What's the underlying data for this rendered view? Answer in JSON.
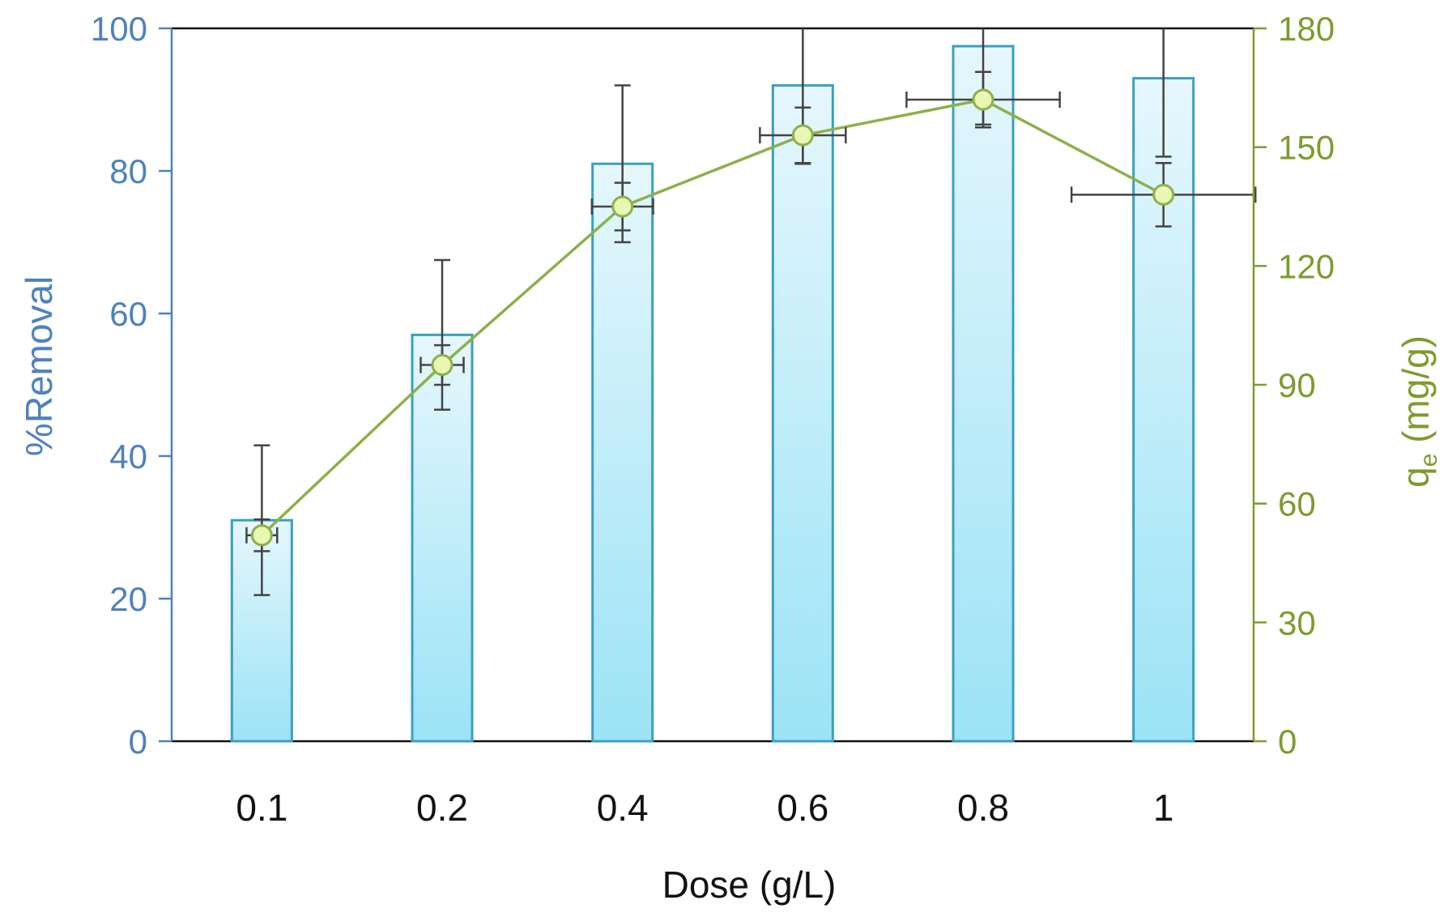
{
  "chart_data": {
    "type": "bar",
    "categories": [
      "0.1",
      "0.2",
      "0.4",
      "0.6",
      "0.8",
      "1"
    ],
    "xlabel": "Dose (g/L)",
    "ylabel": "%Removal",
    "y2label_main": "q",
    "y2label_sub": "e",
    "y2label_rest": " (mg/g)",
    "ylim": [
      0,
      100
    ],
    "y2lim": [
      0,
      180
    ],
    "yticks": [
      0,
      20,
      40,
      60,
      80,
      100
    ],
    "y2ticks": [
      0,
      30,
      60,
      90,
      120,
      150,
      180
    ],
    "grid": false,
    "series": [
      {
        "kind": "bar",
        "axis": "left",
        "values": [
          31,
          57,
          81,
          92,
          97.5,
          93
        ],
        "error": [
          10.5,
          10.5,
          11,
          11,
          11,
          11
        ],
        "color": "#4bacc6"
      },
      {
        "kind": "line",
        "axis": "right",
        "values": [
          52,
          95,
          135,
          153,
          162,
          138
        ],
        "error": [
          4,
          5,
          6,
          7,
          7,
          8
        ],
        "x_error": [
          0.025,
          0.035,
          0.05,
          0.07,
          0.125,
          0.15
        ],
        "color": "#8db04a"
      }
    ],
    "colors": {
      "left_axis": "#4f81bd",
      "right_axis": "#7f9b2f",
      "bar_stroke": "#3aa0c0",
      "bar_fill_top": "#e6f7fd",
      "bar_fill_bottom": "#9be3f6",
      "line": "#8db04a",
      "marker_fill": "#e8f7b4",
      "error_bars": "#444444"
    }
  }
}
